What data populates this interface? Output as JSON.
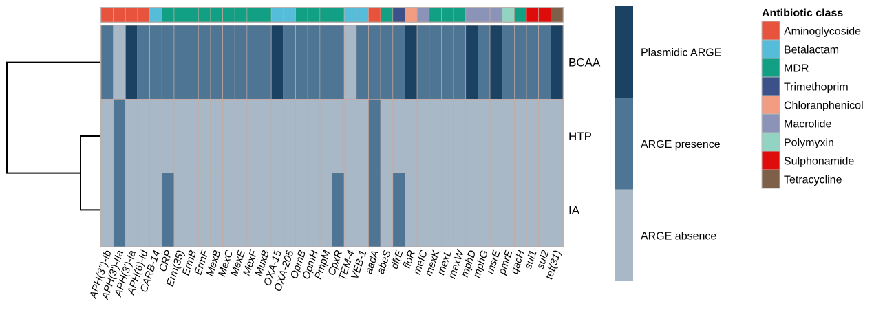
{
  "chart_data": {
    "type": "heatmap",
    "columns": [
      "APH(3'')-Ib",
      "APH(3')-IIa",
      "APH(3')-Ia",
      "APH(6)-Id",
      "CARB-14",
      "CRP",
      "Erm(35)",
      "ErmB",
      "ErmF",
      "MexB",
      "MexC",
      "MexE",
      "MexF",
      "MuxB",
      "OXA-15",
      "OXA-205",
      "OpmB",
      "OpmH",
      "PmpM",
      "CpxR",
      "TEM-4",
      "VEB-1",
      "aadA",
      "abeS",
      "dfrE",
      "floR",
      "mefC",
      "mexK",
      "mexL",
      "mexW",
      "mphD",
      "mphG",
      "msrE",
      "pmrE",
      "qacH",
      "sul1",
      "sul2",
      "tet(31)"
    ],
    "column_class": [
      "Aminoglycoside",
      "Aminoglycoside",
      "Aminoglycoside",
      "Aminoglycoside",
      "Betalactam",
      "MDR",
      "MDR",
      "MDR",
      "MDR",
      "MDR",
      "MDR",
      "MDR",
      "MDR",
      "MDR",
      "Betalactam",
      "Betalactam",
      "MDR",
      "MDR",
      "MDR",
      "MDR",
      "Betalactam",
      "Betalactam",
      "Aminoglycoside",
      "MDR",
      "Trimethoprim",
      "Chloranphenicol",
      "Macrolide",
      "MDR",
      "MDR",
      "MDR",
      "Macrolide",
      "Macrolide",
      "Macrolide",
      "Polymyxin",
      "MDR",
      "Sulphonamide",
      "Sulphonamide",
      "Tetracycline"
    ],
    "rows": [
      "BCAA",
      "HTP",
      "IA"
    ],
    "values": [
      [
        "ARGE presence",
        "ARGE absence",
        "Plasmidic ARGE",
        "ARGE presence",
        "ARGE presence",
        "ARGE presence",
        "ARGE presence",
        "ARGE presence",
        "ARGE presence",
        "ARGE presence",
        "ARGE presence",
        "ARGE presence",
        "ARGE presence",
        "ARGE presence",
        "Plasmidic ARGE",
        "ARGE presence",
        "ARGE presence",
        "ARGE presence",
        "ARGE presence",
        "ARGE presence",
        "ARGE absence",
        "ARGE presence",
        "ARGE presence",
        "ARGE presence",
        "ARGE presence",
        "Plasmidic ARGE",
        "ARGE presence",
        "ARGE presence",
        "ARGE presence",
        "ARGE presence",
        "Plasmidic ARGE",
        "ARGE presence",
        "Plasmidic ARGE",
        "ARGE presence",
        "ARGE presence",
        "ARGE presence",
        "ARGE presence",
        "Plasmidic ARGE"
      ],
      [
        "ARGE absence",
        "ARGE presence",
        "ARGE absence",
        "ARGE absence",
        "ARGE absence",
        "ARGE absence",
        "ARGE absence",
        "ARGE absence",
        "ARGE absence",
        "ARGE absence",
        "ARGE absence",
        "ARGE absence",
        "ARGE absence",
        "ARGE absence",
        "ARGE absence",
        "ARGE absence",
        "ARGE absence",
        "ARGE absence",
        "ARGE absence",
        "ARGE absence",
        "ARGE absence",
        "ARGE absence",
        "ARGE presence",
        "ARGE absence",
        "ARGE absence",
        "ARGE absence",
        "ARGE absence",
        "ARGE absence",
        "ARGE absence",
        "ARGE absence",
        "ARGE absence",
        "ARGE absence",
        "ARGE absence",
        "ARGE absence",
        "ARGE absence",
        "ARGE absence",
        "ARGE absence",
        "ARGE absence"
      ],
      [
        "ARGE absence",
        "ARGE presence",
        "ARGE absence",
        "ARGE absence",
        "ARGE absence",
        "ARGE presence",
        "ARGE absence",
        "ARGE absence",
        "ARGE absence",
        "ARGE absence",
        "ARGE absence",
        "ARGE absence",
        "ARGE absence",
        "ARGE absence",
        "ARGE absence",
        "ARGE absence",
        "ARGE absence",
        "ARGE absence",
        "ARGE absence",
        "ARGE presence",
        "ARGE absence",
        "ARGE absence",
        "ARGE presence",
        "ARGE absence",
        "ARGE presence",
        "ARGE absence",
        "ARGE absence",
        "ARGE absence",
        "ARGE absence",
        "ARGE absence",
        "ARGE absence",
        "ARGE absence",
        "ARGE absence",
        "ARGE absence",
        "ARGE absence",
        "ARGE absence",
        "ARGE absence",
        "ARGE absence"
      ]
    ],
    "value_scale": [
      {
        "label": "Plasmidic ARGE",
        "color": "#1b4262"
      },
      {
        "label": "ARGE presence",
        "color": "#4e7594"
      },
      {
        "label": "ARGE absence",
        "color": "#a8b8c6"
      }
    ],
    "legend": {
      "title": "Antibiotic class",
      "entries": [
        {
          "label": "Aminoglycoside",
          "color": "#e8533d"
        },
        {
          "label": "Betalactam",
          "color": "#55bcd9"
        },
        {
          "label": "MDR",
          "color": "#11a083"
        },
        {
          "label": "Trimethoprim",
          "color": "#3c5189"
        },
        {
          "label": "Chloranphenicol",
          "color": "#f29c82"
        },
        {
          "label": "Macrolide",
          "color": "#8c93b8"
        },
        {
          "label": "Polymyxin",
          "color": "#92d3c2"
        },
        {
          "label": "Sulphonamide",
          "color": "#df0c0c"
        },
        {
          "label": "Tetracycline",
          "color": "#7e5f47"
        }
      ],
      "placement": "right"
    },
    "dendrogram": "rows: HTP and IA cluster together, then join BCAA",
    "cell_border_color": "#c8a89e"
  }
}
